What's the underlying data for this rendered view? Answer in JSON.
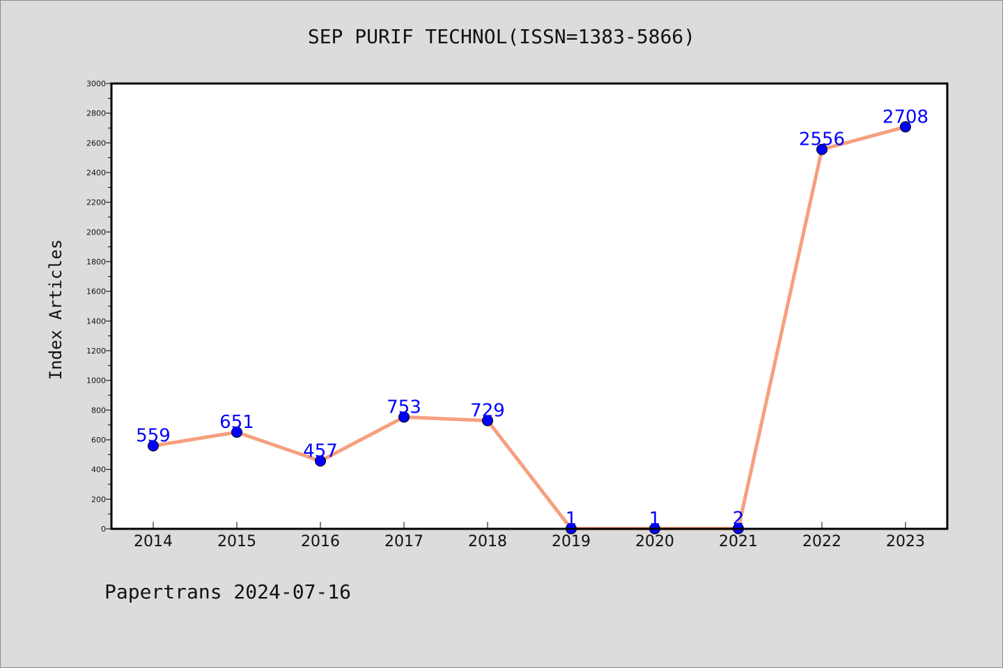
{
  "chart_data": {
    "type": "line",
    "title": "SEP PURIF TECHNOL(ISSN=1383-5866)",
    "ylabel": "Index Articles",
    "xlabel": "",
    "categories": [
      "2014",
      "2015",
      "2016",
      "2017",
      "2018",
      "2019",
      "2020",
      "2021",
      "2022",
      "2023"
    ],
    "values": [
      559,
      651,
      457,
      753,
      729,
      1,
      1,
      2,
      2556,
      2708
    ],
    "ylim": [
      0,
      3000
    ],
    "yticks": [
      0,
      200,
      400,
      600,
      800,
      1000,
      1200,
      1400,
      1600,
      1800,
      2000,
      2200,
      2400,
      2600,
      2800,
      3000
    ],
    "grid": false,
    "legend": "none",
    "colors": {
      "line": "#f5a07f",
      "marker": "#0000ff",
      "data_label": "#0000ff",
      "background": "#dcdcdc",
      "plot_background": "#ffffff"
    }
  },
  "footer": "Papertrans 2024-07-16"
}
